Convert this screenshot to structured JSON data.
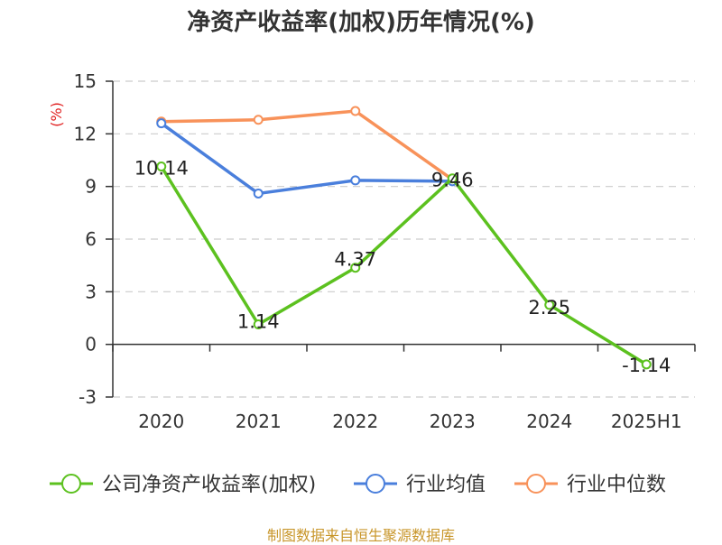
{
  "chart_data": {
    "type": "line",
    "title": "净资产收益率(加权)历年情况(%)",
    "ylabel": "(%)",
    "xlabel": "",
    "categories": [
      "2020",
      "2021",
      "2022",
      "2023",
      "2024",
      "2025H1"
    ],
    "ylim": [
      -3,
      15
    ],
    "yticks": [
      -3,
      0,
      3,
      6,
      9,
      12,
      15
    ],
    "grid": true,
    "legend_position": "bottom",
    "series": [
      {
        "name": "公司净资产收益率(加权)",
        "color": "#5cc11f",
        "values": [
          10.14,
          1.14,
          4.37,
          9.46,
          2.25,
          -1.14
        ],
        "labels": [
          "10.14",
          "1.14",
          "4.37",
          "9.46",
          "2.25",
          "-1.14"
        ]
      },
      {
        "name": "行业均值",
        "color": "#4a7fdc",
        "values": [
          12.6,
          8.6,
          9.35,
          9.3,
          null,
          null
        ]
      },
      {
        "name": "行业中位数",
        "color": "#f8925a",
        "values": [
          12.7,
          12.8,
          13.3,
          9.4,
          null,
          null
        ]
      }
    ]
  },
  "source_text": "制图数据来自恒生聚源数据库"
}
